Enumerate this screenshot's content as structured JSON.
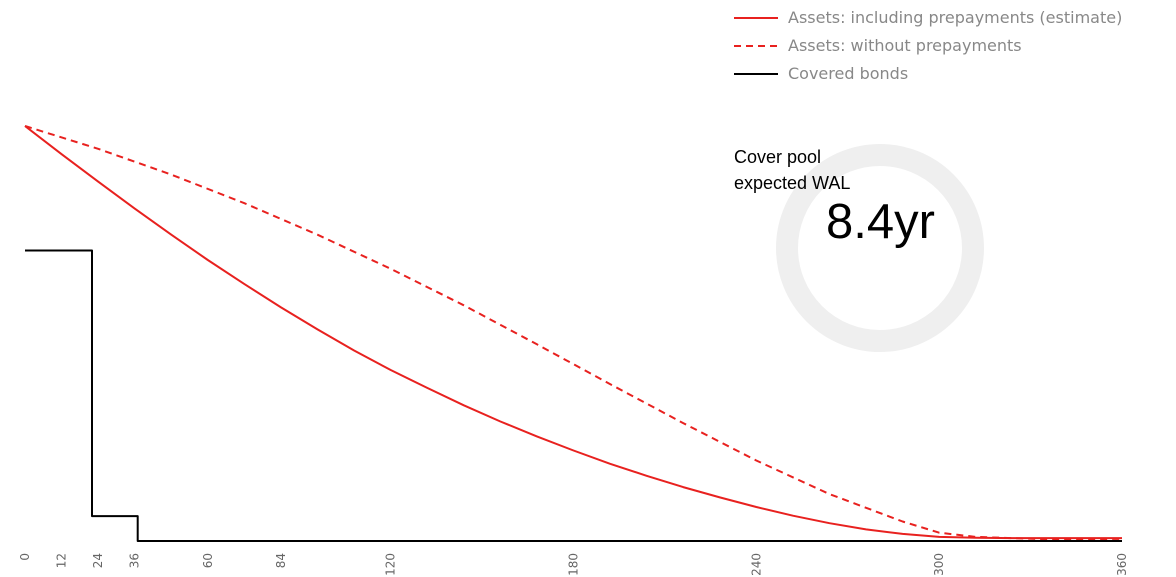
{
  "chart_data": {
    "type": "line",
    "title": "",
    "xlabel": "",
    "ylabel": "",
    "xlim": [
      0,
      360
    ],
    "ylim": [
      0,
      100
    ],
    "grid": false,
    "legend_position": "top-right",
    "x_ticks": [
      0,
      12,
      24,
      36,
      60,
      84,
      120,
      180,
      240,
      300,
      360
    ],
    "series": [
      {
        "name": "Assets: including prepayments (estimate)",
        "color": "#e8211f",
        "dash": "solid",
        "x": [
          0,
          12,
          24,
          36,
          48,
          60,
          72,
          84,
          96,
          108,
          120,
          132,
          144,
          156,
          168,
          180,
          192,
          204,
          216,
          228,
          240,
          252,
          264,
          276,
          288,
          300,
          312,
          324,
          336,
          348,
          360
        ],
        "values": [
          100,
          93.2,
          86.6,
          80.1,
          73.8,
          67.7,
          61.9,
          56.3,
          51.0,
          45.9,
          41.2,
          36.9,
          32.7,
          28.8,
          25.2,
          21.8,
          18.6,
          15.7,
          13.0,
          10.5,
          8.2,
          6.1,
          4.3,
          2.8,
          1.7,
          1.0,
          0.8,
          0.7,
          0.7,
          0.7,
          0.7
        ]
      },
      {
        "name": "Assets: without prepayments",
        "color": "#e8211f",
        "dash": "dashed",
        "x": [
          0,
          24,
          48,
          72,
          96,
          120,
          144,
          168,
          192,
          216,
          240,
          264,
          288,
          300,
          312,
          336,
          360
        ],
        "values": [
          100,
          94.5,
          88.3,
          81.4,
          73.8,
          65.6,
          56.8,
          47.4,
          37.8,
          28.4,
          19.4,
          11.3,
          4.7,
          2.0,
          1.0,
          0.4,
          0.2
        ]
      },
      {
        "name": "Covered bonds",
        "color": "#000000",
        "dash": "solid",
        "step": true,
        "x": [
          0,
          22,
          22,
          37,
          37,
          360
        ],
        "values": [
          70,
          70,
          6,
          6,
          0,
          0
        ]
      }
    ]
  },
  "callout": {
    "label_line1": "Cover pool",
    "label_line2": "expected WAL",
    "value": "8.4yr",
    "ring_color": "#efefef"
  }
}
